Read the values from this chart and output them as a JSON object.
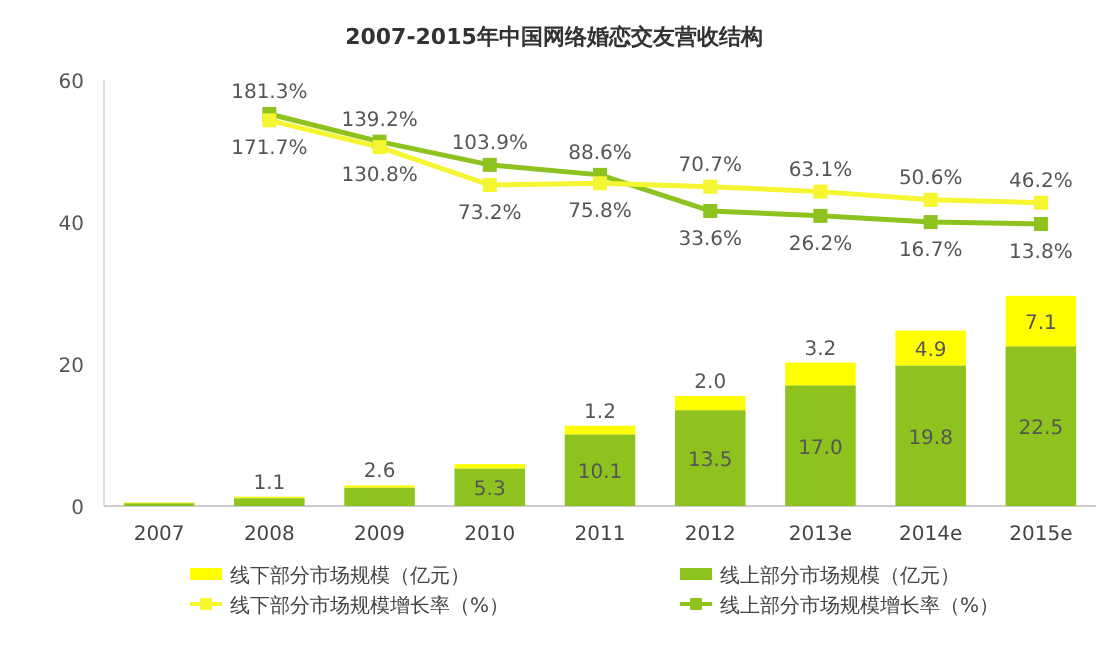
{
  "chart_data": {
    "type": "bar",
    "title": "2007-2015年中国网络婚恋交友营收结构",
    "categories": [
      "2007",
      "2008",
      "2009",
      "2010",
      "2011",
      "2012",
      "2013e",
      "2014e",
      "2015e"
    ],
    "stacked": true,
    "ylim": [
      0,
      60
    ],
    "yticks": [
      0,
      20,
      40,
      60
    ],
    "legend": "bottom",
    "marker": "square",
    "grid": false,
    "series": [
      {
        "name": "线上部分市场规模（亿元）",
        "color": "#8dc21f",
        "values": [
          0.4,
          1.1,
          2.6,
          5.3,
          10.1,
          13.5,
          17.0,
          19.8,
          22.5
        ],
        "value_labels": [
          null,
          "1.1",
          "2.6",
          "5.3",
          "10.1",
          "13.5",
          "17.0",
          "19.8",
          "22.5"
        ]
      },
      {
        "name": "线下部分市场规模（亿元）",
        "color": "#ffff00",
        "values": [
          0.1,
          0.2,
          0.3,
          0.6,
          1.2,
          2.0,
          3.2,
          4.9,
          7.1
        ],
        "value_labels": [
          null,
          null,
          null,
          null,
          "1.2",
          "2.0",
          "3.2",
          "4.9",
          "7.1"
        ]
      },
      {
        "name": "线上部分市场规模增长率（%）",
        "type": "line",
        "axis": "y2",
        "color": "#8dc21f",
        "values": [
          null,
          181.3,
          139.2,
          103.9,
          88.6,
          33.6,
          26.2,
          16.7,
          13.8
        ],
        "value_labels": [
          null,
          "181.3%",
          "139.2%",
          "103.9%",
          "88.6%",
          "33.6%",
          "26.2%",
          "16.7%",
          "13.8%"
        ]
      },
      {
        "name": "线下部分市场规模增长率（%）",
        "type": "line",
        "axis": "y2",
        "color": "#f5f532",
        "values": [
          null,
          171.7,
          130.8,
          73.2,
          75.8,
          70.7,
          63.1,
          50.6,
          46.2
        ],
        "value_labels": [
          null,
          "171.7%",
          "130.8%",
          "73.2%",
          "75.8%",
          "70.7%",
          "63.1%",
          "50.6%",
          "46.2%"
        ]
      }
    ]
  }
}
